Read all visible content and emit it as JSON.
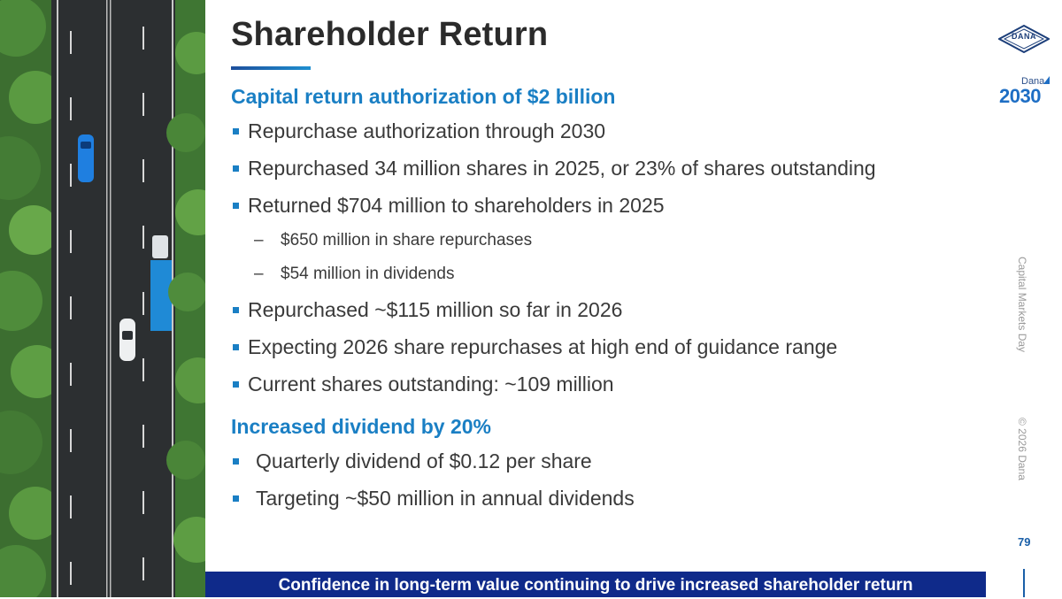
{
  "slide": {
    "title": "Shareholder Return",
    "sections": [
      {
        "heading": "Capital return authorization of $2 billion",
        "bullets": [
          "Repurchase authorization through 2030",
          "Repurchased 34 million shares in 2025, or 23% of shares outstanding",
          "Returned $704 million to shareholders in 2025"
        ],
        "sub_bullets": [
          "$650 million in share repurchases",
          "$54 million in dividends"
        ],
        "bullets_after": [
          "Repurchased ~$115 million so far in 2026",
          "Expecting 2026 share repurchases at high end of guidance range",
          "Current shares outstanding: ~109 million"
        ]
      },
      {
        "heading": "Increased dividend by 20%",
        "bullets": [
          "Quarterly dividend of $0.12 per share",
          "Targeting ~$50 million in annual dividends"
        ]
      }
    ],
    "footer_banner": "Confidence in long-term value continuing to drive increased shareholder return",
    "page_number": "79",
    "sub_bullet_marker": "–"
  },
  "sidebar": {
    "event_label": "Capital Markets Day",
    "copyright": "© 2026 Dana"
  },
  "branding": {
    "logo_text": "DANA",
    "program_small": "Dana",
    "program_year": "2030"
  },
  "colors": {
    "accent_blue": "#1a7fc4",
    "banner_navy": "#0f2a8a",
    "title_gray": "#2b2b2b"
  }
}
